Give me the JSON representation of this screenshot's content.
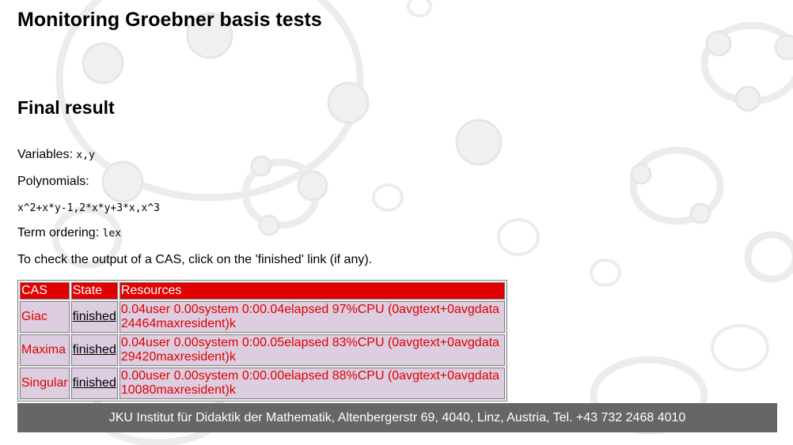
{
  "page": {
    "title": "Monitoring Groebner basis tests",
    "subtitle": "Final result"
  },
  "info": {
    "variables_label": "Variables:",
    "variables_value": "x,y",
    "polynomials_label": "Polynomials:",
    "polynomials_value": "x^2+x*y-1,2*x*y+3*x,x^3",
    "term_ordering_label": "Term ordering:",
    "term_ordering_value": "lex",
    "instruction": "To check the output of a CAS, click on the 'finished' link (if any)."
  },
  "table": {
    "headers": [
      "CAS",
      "State",
      "Resources"
    ],
    "rows": [
      {
        "cas": "Giac",
        "state": "finished",
        "res_line1": "0.04user 0.00system 0:00.04elapsed 97%CPU (0avgtext+0avgdata",
        "res_line2": "24464maxresident)k"
      },
      {
        "cas": "Maxima",
        "state": "finished",
        "res_line1": "0.04user 0.00system 0:00.05elapsed 83%CPU (0avgtext+0avgdata",
        "res_line2": "29420maxresident)k"
      },
      {
        "cas": "Singular",
        "state": "finished",
        "res_line1": "0.00user 0.00system 0:00.00elapsed 88%CPU (0avgtext+0avgdata",
        "res_line2": "10080maxresident)k"
      }
    ]
  },
  "footer": {
    "text": "JKU Institut für Didaktik der Mathematik, Altenbergerstr 69, 4040, Linz, Austria, Tel. +43 732 2468 4010"
  },
  "colors": {
    "header_bg": "#e00000",
    "cell_bg": "#ddcde0",
    "cell_text": "#e00000",
    "footer_bg": "#666666",
    "watermark": "#ececec"
  },
  "watermark_icon": "geogebra-logo-pattern"
}
